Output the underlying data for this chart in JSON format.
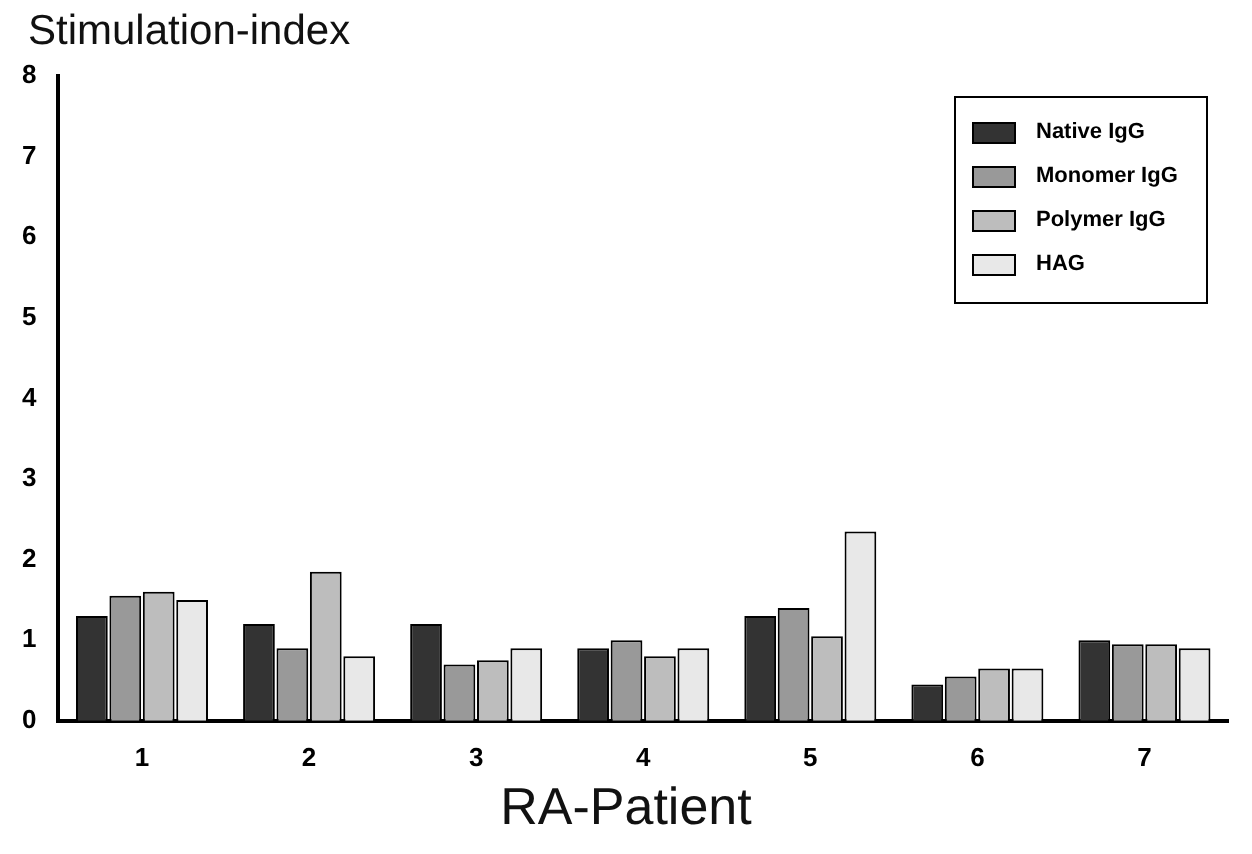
{
  "chart_data": {
    "type": "bar",
    "ylabel": "Stimulation-index",
    "xlabel": "RA-Patient",
    "categories": [
      "1",
      "2",
      "3",
      "4",
      "5",
      "6",
      "7"
    ],
    "series": [
      {
        "name": "Native IgG",
        "color": "#333333",
        "values": [
          1.3,
          1.2,
          1.2,
          0.9,
          1.3,
          0.45,
          1.0
        ]
      },
      {
        "name": "Monomer IgG",
        "color": "#999999",
        "values": [
          1.55,
          0.9,
          0.7,
          1.0,
          1.4,
          0.55,
          0.95
        ]
      },
      {
        "name": "Polymer IgG",
        "color": "#bdbdbd",
        "values": [
          1.6,
          1.85,
          0.75,
          0.8,
          1.05,
          0.65,
          0.95
        ]
      },
      {
        "name": "HAG",
        "color": "#e8e8e8",
        "values": [
          1.5,
          0.8,
          0.9,
          0.9,
          2.35,
          0.65,
          0.9
        ]
      }
    ],
    "ylim": [
      0,
      8
    ],
    "yticks": [
      0,
      1,
      2,
      3,
      4,
      5,
      6,
      7,
      8
    ],
    "grid": false,
    "legend": "top right"
  }
}
